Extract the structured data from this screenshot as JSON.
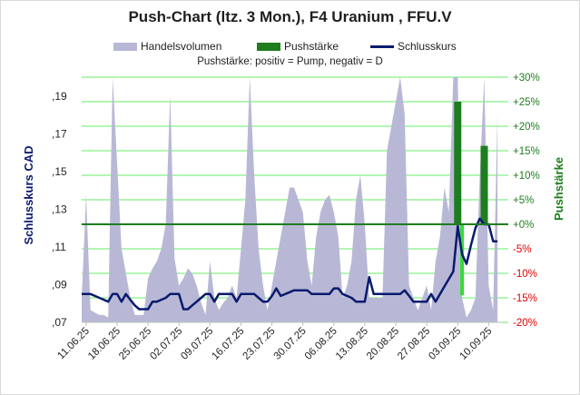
{
  "title": "Push-Chart (ltz. 3 Mon.), F4 Uranium , FFU.V",
  "subtitle": "Pushstärke: positiv = Pump, negativ = D",
  "legend": [
    {
      "label": "Handelsvolumen",
      "color": "#b8b8d6"
    },
    {
      "label": "Pushstärke",
      "color": "#1e7d1e"
    },
    {
      "label": "Schlusskurs",
      "color": "#0a1a6e"
    }
  ],
  "colors": {
    "volume": "#b8b8d6",
    "push_positive": "#1e7d1e",
    "push_negative": "#33dd33",
    "close": "#0a1a6e",
    "zero_line": "#1e7d1e",
    "grid": "#66ee66",
    "right_positive": "#1e7d1e",
    "right_negative": "#e00000"
  },
  "chart_data": {
    "type": "line",
    "title": "Push-Chart (ltz. 3 Mon.), F4 Uranium , FFU.V",
    "ylabel": "Schlusskurs CAD",
    "y2label": "Pushstärke",
    "ylim": [
      0.07,
      0.2
    ],
    "y2lim": [
      -20,
      30
    ],
    "y_ticks": [
      ",07",
      ",09",
      ",11",
      ",13",
      ",15",
      ",17",
      ",19"
    ],
    "y2_ticks": [
      "-20%",
      "-15%",
      "-10%",
      "-5%",
      "+0%",
      "+5%",
      "+10%",
      "+15%",
      "+20%",
      "+25%",
      "+30%"
    ],
    "x_ticks": [
      "11.06.25",
      "18.06.25",
      "25.06.25",
      "02.07.25",
      "09.07.25",
      "16.07.25",
      "23.07.25",
      "30.07.25",
      "06.08.25",
      "13.08.25",
      "20.08.25",
      "27.08.25",
      "03.09.25",
      "10.09.25"
    ],
    "x_range": [
      "10.06.25",
      "13.09.25"
    ],
    "grid": true,
    "series": [
      {
        "name": "Schlusskurs",
        "kind": "line",
        "axis": "left",
        "points": [
          [
            "10.06.25",
            0.085
          ],
          [
            "11.06.25",
            0.085
          ],
          [
            "12.06.25",
            0.085
          ],
          [
            "13.06.25",
            0.084
          ],
          [
            "14.06.25",
            0.083
          ],
          [
            "15.06.25",
            0.082
          ],
          [
            "16.06.25",
            0.081
          ],
          [
            "17.06.25",
            0.085
          ],
          [
            "18.06.25",
            0.085
          ],
          [
            "19.06.25",
            0.081
          ],
          [
            "20.06.25",
            0.085
          ],
          [
            "21.06.25",
            0.082
          ],
          [
            "22.06.25",
            0.079
          ],
          [
            "23.06.25",
            0.077
          ],
          [
            "24.06.25",
            0.077
          ],
          [
            "25.06.25",
            0.077
          ],
          [
            "26.06.25",
            0.081
          ],
          [
            "27.06.25",
            0.081
          ],
          [
            "28.06.25",
            0.082
          ],
          [
            "29.06.25",
            0.083
          ],
          [
            "30.06.25",
            0.085
          ],
          [
            "01.07.25",
            0.085
          ],
          [
            "02.07.25",
            0.085
          ],
          [
            "03.07.25",
            0.077
          ],
          [
            "04.07.25",
            0.077
          ],
          [
            "05.07.25",
            0.079
          ],
          [
            "06.07.25",
            0.081
          ],
          [
            "07.07.25",
            0.083
          ],
          [
            "08.07.25",
            0.085
          ],
          [
            "09.07.25",
            0.085
          ],
          [
            "10.07.25",
            0.081
          ],
          [
            "11.07.25",
            0.085
          ],
          [
            "12.07.25",
            0.085
          ],
          [
            "13.07.25",
            0.085
          ],
          [
            "14.07.25",
            0.085
          ],
          [
            "15.07.25",
            0.081
          ],
          [
            "16.07.25",
            0.085
          ],
          [
            "17.07.25",
            0.085
          ],
          [
            "18.07.25",
            0.085
          ],
          [
            "19.07.25",
            0.085
          ],
          [
            "20.07.25",
            0.083
          ],
          [
            "21.07.25",
            0.081
          ],
          [
            "22.07.25",
            0.081
          ],
          [
            "23.07.25",
            0.084
          ],
          [
            "24.07.25",
            0.088
          ],
          [
            "25.07.25",
            0.084
          ],
          [
            "26.07.25",
            0.085
          ],
          [
            "27.07.25",
            0.086
          ],
          [
            "28.07.25",
            0.087
          ],
          [
            "29.07.25",
            0.087
          ],
          [
            "30.07.25",
            0.087
          ],
          [
            "31.07.25",
            0.087
          ],
          [
            "01.08.25",
            0.085
          ],
          [
            "02.08.25",
            0.085
          ],
          [
            "03.08.25",
            0.085
          ],
          [
            "04.08.25",
            0.085
          ],
          [
            "05.08.25",
            0.085
          ],
          [
            "06.08.25",
            0.088
          ],
          [
            "07.08.25",
            0.088
          ],
          [
            "08.08.25",
            0.085
          ],
          [
            "09.08.25",
            0.084
          ],
          [
            "10.08.25",
            0.083
          ],
          [
            "11.08.25",
            0.081
          ],
          [
            "12.08.25",
            0.081
          ],
          [
            "13.08.25",
            0.081
          ],
          [
            "14.08.25",
            0.094
          ],
          [
            "15.08.25",
            0.085
          ],
          [
            "16.08.25",
            0.085
          ],
          [
            "17.08.25",
            0.085
          ],
          [
            "18.08.25",
            0.085
          ],
          [
            "19.08.25",
            0.085
          ],
          [
            "20.08.25",
            0.085
          ],
          [
            "21.08.25",
            0.085
          ],
          [
            "22.08.25",
            0.087
          ],
          [
            "23.08.25",
            0.084
          ],
          [
            "24.08.25",
            0.081
          ],
          [
            "25.08.25",
            0.081
          ],
          [
            "26.08.25",
            0.081
          ],
          [
            "27.08.25",
            0.081
          ],
          [
            "28.08.25",
            0.085
          ],
          [
            "29.08.25",
            0.081
          ],
          [
            "30.08.25",
            0.085
          ],
          [
            "31.08.25",
            0.089
          ],
          [
            "01.09.25",
            0.093
          ],
          [
            "02.09.25",
            0.097
          ],
          [
            "03.09.25",
            0.121
          ],
          [
            "04.09.25",
            0.106
          ],
          [
            "05.09.25",
            0.101
          ],
          [
            "06.09.25",
            0.111
          ],
          [
            "07.09.25",
            0.12
          ],
          [
            "08.09.25",
            0.125
          ],
          [
            "09.09.25",
            0.122
          ],
          [
            "10.09.25",
            0.122
          ],
          [
            "11.09.25",
            0.113
          ],
          [
            "12.09.25",
            0.113
          ]
        ]
      },
      {
        "name": "Pushstärke",
        "kind": "bar",
        "axis": "right",
        "points": [
          [
            "03.09.25",
            25
          ],
          [
            "04.09.25",
            -14.5
          ],
          [
            "09.09.25",
            16
          ]
        ]
      },
      {
        "name": "Handelsvolumen",
        "kind": "area",
        "axis": "none",
        "points": [
          [
            "10.06.25",
            0.1
          ],
          [
            "11.06.25",
            0.52
          ],
          [
            "12.06.25",
            0.05
          ],
          [
            "13.06.25",
            0.04
          ],
          [
            "14.06.25",
            0.03
          ],
          [
            "15.06.25",
            0.03
          ],
          [
            "16.06.25",
            0.02
          ],
          [
            "17.06.25",
            1.0
          ],
          [
            "18.06.25",
            0.65
          ],
          [
            "19.06.25",
            0.3
          ],
          [
            "20.06.25",
            0.2
          ],
          [
            "21.06.25",
            0.1
          ],
          [
            "22.06.25",
            0.03
          ],
          [
            "23.06.25",
            0.03
          ],
          [
            "24.06.25",
            0.03
          ],
          [
            "25.06.25",
            0.18
          ],
          [
            "26.06.25",
            0.22
          ],
          [
            "27.06.25",
            0.25
          ],
          [
            "28.06.25",
            0.3
          ],
          [
            "29.06.25",
            0.4
          ],
          [
            "30.06.25",
            0.93
          ],
          [
            "01.07.25",
            0.26
          ],
          [
            "02.07.25",
            0.15
          ],
          [
            "03.07.25",
            0.18
          ],
          [
            "04.07.25",
            0.22
          ],
          [
            "05.07.25",
            0.2
          ],
          [
            "06.07.25",
            0.15
          ],
          [
            "07.07.25",
            0.08
          ],
          [
            "08.07.25",
            0.03
          ],
          [
            "09.07.25",
            0.25
          ],
          [
            "10.07.25",
            0.1
          ],
          [
            "11.07.25",
            0.05
          ],
          [
            "12.07.25",
            0.08
          ],
          [
            "13.07.25",
            0.1
          ],
          [
            "14.07.25",
            0.15
          ],
          [
            "15.07.25",
            0.1
          ],
          [
            "16.07.25",
            0.3
          ],
          [
            "17.07.25",
            0.5
          ],
          [
            "18.07.25",
            1.0
          ],
          [
            "19.07.25",
            0.6
          ],
          [
            "20.07.25",
            0.3
          ],
          [
            "21.07.25",
            0.15
          ],
          [
            "22.07.25",
            0.05
          ],
          [
            "23.07.25",
            0.15
          ],
          [
            "24.07.25",
            0.25
          ],
          [
            "25.07.25",
            0.35
          ],
          [
            "26.07.25",
            0.45
          ],
          [
            "27.07.25",
            0.55
          ],
          [
            "28.07.25",
            0.55
          ],
          [
            "29.07.25",
            0.5
          ],
          [
            "30.07.25",
            0.45
          ],
          [
            "31.07.25",
            0.25
          ],
          [
            "01.08.25",
            0.15
          ],
          [
            "02.08.25",
            0.35
          ],
          [
            "03.08.25",
            0.45
          ],
          [
            "04.08.25",
            0.5
          ],
          [
            "05.08.25",
            0.52
          ],
          [
            "06.08.25",
            0.45
          ],
          [
            "07.08.25",
            0.35
          ],
          [
            "08.08.25",
            0.1
          ],
          [
            "09.08.25",
            0.15
          ],
          [
            "10.08.25",
            0.25
          ],
          [
            "11.08.25",
            0.5
          ],
          [
            "12.08.25",
            0.6
          ],
          [
            "13.08.25",
            0.4
          ],
          [
            "14.08.25",
            0.1
          ],
          [
            "15.08.25",
            0.1
          ],
          [
            "16.08.25",
            0.1
          ],
          [
            "17.08.25",
            0.1
          ],
          [
            "18.08.25",
            0.7
          ],
          [
            "19.08.25",
            0.8
          ],
          [
            "20.08.25",
            0.9
          ],
          [
            "21.08.25",
            1.0
          ],
          [
            "22.08.25",
            0.85
          ],
          [
            "23.08.25",
            0.15
          ],
          [
            "24.08.25",
            0.1
          ],
          [
            "25.08.25",
            0.05
          ],
          [
            "26.08.25",
            0.1
          ],
          [
            "27.08.25",
            0.15
          ],
          [
            "28.08.25",
            0.05
          ],
          [
            "29.08.25",
            0.25
          ],
          [
            "30.08.25",
            0.35
          ],
          [
            "31.08.25",
            0.55
          ],
          [
            "01.09.25",
            0.45
          ],
          [
            "02.09.25",
            1.0
          ],
          [
            "03.09.25",
            1.0
          ],
          [
            "04.09.25",
            0.1
          ],
          [
            "05.09.25",
            0.02
          ],
          [
            "06.09.25",
            0.05
          ],
          [
            "07.09.25",
            0.1
          ],
          [
            "08.09.25",
            0.6
          ],
          [
            "09.09.25",
            1.0
          ],
          [
            "10.09.25",
            0.15
          ],
          [
            "11.09.25",
            0.05
          ],
          [
            "12.09.25",
            0.85
          ]
        ]
      }
    ]
  }
}
